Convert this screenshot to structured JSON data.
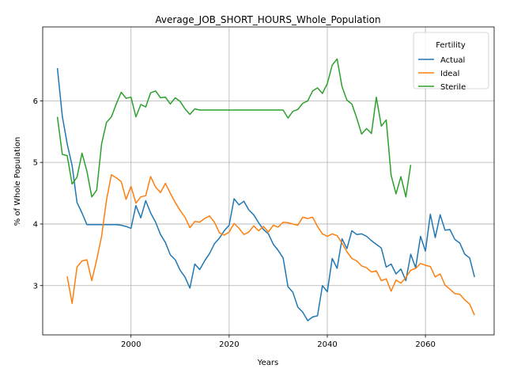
{
  "chart_data": {
    "type": "line",
    "title": "Average_JOB_SHORT_HOURS_Whole_Population",
    "xlabel": "Years",
    "ylabel": "% of Whole Population",
    "xlim": [
      1982,
      2074
    ],
    "ylim": [
      2.2,
      7.2
    ],
    "xticks": [
      2000,
      2020,
      2040,
      2060
    ],
    "yticks": [
      3,
      4,
      5,
      6
    ],
    "grid": true,
    "legend": {
      "title": "Fertility",
      "placement": "top-right"
    },
    "series": [
      {
        "name": "Actual",
        "color": "#1f77b4",
        "x": [
          1985,
          1986,
          1987,
          1988,
          1989,
          1990,
          1991,
          1992,
          1993,
          1994,
          1995,
          1996,
          1997,
          1998,
          1999,
          2000,
          2001,
          2002,
          2003,
          2004,
          2005,
          2006,
          2007,
          2008,
          2009,
          2010,
          2011,
          2012,
          2013,
          2014,
          2015,
          2016,
          2017,
          2018,
          2019,
          2020,
          2021,
          2022,
          2023,
          2024,
          2025,
          2026,
          2027,
          2028,
          2029,
          2030,
          2031,
          2032,
          2033,
          2034,
          2035,
          2036,
          2037,
          2038,
          2039,
          2040,
          2041,
          2042,
          2043,
          2044,
          2045,
          2046,
          2047,
          2048,
          2049,
          2050,
          2051,
          2052,
          2053,
          2054,
          2055,
          2056,
          2057,
          2058,
          2059,
          2060,
          2061,
          2062,
          2063,
          2064,
          2065,
          2066,
          2067,
          2068,
          2069,
          2070
        ],
        "y": [
          6.53,
          5.75,
          5.3,
          4.95,
          4.35,
          4.18,
          3.99,
          3.99,
          3.99,
          3.99,
          3.99,
          3.99,
          3.99,
          3.98,
          3.96,
          3.93,
          4.3,
          4.1,
          4.38,
          4.18,
          4.03,
          3.83,
          3.7,
          3.5,
          3.42,
          3.25,
          3.14,
          2.96,
          3.35,
          3.26,
          3.4,
          3.52,
          3.68,
          3.77,
          3.89,
          3.98,
          4.41,
          4.31,
          4.37,
          4.23,
          4.15,
          4.02,
          3.91,
          3.84,
          3.67,
          3.57,
          3.45,
          2.98,
          2.89,
          2.65,
          2.57,
          2.43,
          2.49,
          2.51,
          3.0,
          2.9,
          3.44,
          3.28,
          3.76,
          3.6,
          3.89,
          3.83,
          3.84,
          3.8,
          3.73,
          3.67,
          3.61,
          3.3,
          3.35,
          3.19,
          3.27,
          3.08,
          3.51,
          3.29,
          3.8,
          3.56,
          4.16,
          3.78,
          4.15,
          3.9,
          3.91,
          3.75,
          3.69,
          3.51,
          3.45,
          3.14
        ]
      },
      {
        "name": "Ideal",
        "color": "#ff7f0e",
        "x": [
          1987,
          1988,
          1989,
          1990,
          1991,
          1992,
          1993,
          1994,
          1995,
          1996,
          1997,
          1998,
          1999,
          2000,
          2001,
          2002,
          2003,
          2004,
          2005,
          2006,
          2007,
          2008,
          2009,
          2010,
          2011,
          2012,
          2013,
          2014,
          2015,
          2016,
          2017,
          2018,
          2019,
          2020,
          2021,
          2022,
          2023,
          2024,
          2025,
          2026,
          2027,
          2028,
          2029,
          2030,
          2031,
          2032,
          2033,
          2034,
          2035,
          2036,
          2037,
          2038,
          2039,
          2040,
          2041,
          2042,
          2043,
          2044,
          2045,
          2046,
          2047,
          2048,
          2049,
          2050,
          2051,
          2052,
          2053,
          2054,
          2055,
          2056,
          2057,
          2058,
          2059,
          2060,
          2061,
          2062,
          2063,
          2064,
          2065,
          2066,
          2067,
          2068,
          2069,
          2070
        ],
        "y": [
          3.15,
          2.71,
          3.3,
          3.4,
          3.42,
          3.08,
          3.42,
          3.8,
          4.39,
          4.8,
          4.75,
          4.69,
          4.4,
          4.61,
          4.34,
          4.44,
          4.46,
          4.77,
          4.6,
          4.51,
          4.66,
          4.5,
          4.35,
          4.22,
          4.11,
          3.94,
          4.04,
          4.03,
          4.09,
          4.13,
          4.03,
          3.86,
          3.82,
          3.87,
          4.01,
          3.93,
          3.83,
          3.87,
          3.97,
          3.89,
          3.96,
          3.87,
          3.98,
          3.95,
          4.03,
          4.02,
          4.0,
          3.98,
          4.11,
          4.09,
          4.11,
          3.96,
          3.84,
          3.8,
          3.84,
          3.81,
          3.69,
          3.55,
          3.44,
          3.4,
          3.32,
          3.29,
          3.22,
          3.24,
          3.08,
          3.11,
          2.91,
          3.09,
          3.04,
          3.13,
          3.25,
          3.28,
          3.36,
          3.33,
          3.31,
          3.14,
          3.19,
          3.01,
          2.94,
          2.87,
          2.86,
          2.77,
          2.7,
          2.52
        ]
      },
      {
        "name": "Sterile",
        "color": "#2ca02c",
        "x": [
          1985,
          1986,
          1987,
          1988,
          1989,
          1990,
          1991,
          1992,
          1993,
          1994,
          1995,
          1996,
          1997,
          1998,
          1999,
          2000,
          2001,
          2002,
          2003,
          2004,
          2005,
          2006,
          2007,
          2008,
          2009,
          2010,
          2011,
          2012,
          2013,
          2014,
          2015,
          2016,
          2017,
          2018,
          2019,
          2020,
          2021,
          2022,
          2023,
          2024,
          2025,
          2026,
          2027,
          2028,
          2029,
          2030,
          2031,
          2032,
          2033,
          2034,
          2035,
          2036,
          2037,
          2038,
          2039,
          2040,
          2041,
          2042,
          2043,
          2044,
          2045,
          2046,
          2047,
          2048,
          2049,
          2050,
          2051,
          2052,
          2053,
          2054,
          2055,
          2056,
          2057
        ],
        "y": [
          5.74,
          5.13,
          5.11,
          4.65,
          4.76,
          5.15,
          4.86,
          4.44,
          4.55,
          5.3,
          5.65,
          5.74,
          5.95,
          6.14,
          6.04,
          6.06,
          5.74,
          5.94,
          5.9,
          6.13,
          6.16,
          6.05,
          6.06,
          5.95,
          6.05,
          5.99,
          5.87,
          5.78,
          5.87,
          5.85,
          5.85,
          5.85,
          5.85,
          5.85,
          5.85,
          5.85,
          5.85,
          5.85,
          5.85,
          5.85,
          5.85,
          5.85,
          5.85,
          5.85,
          5.85,
          5.85,
          5.85,
          5.72,
          5.83,
          5.86,
          5.96,
          6.0,
          6.16,
          6.21,
          6.12,
          6.28,
          6.58,
          6.68,
          6.23,
          6.01,
          5.95,
          5.72,
          5.46,
          5.55,
          5.47,
          6.06,
          5.59,
          5.69,
          4.79,
          4.49,
          4.77,
          4.44,
          4.96
        ]
      }
    ]
  }
}
